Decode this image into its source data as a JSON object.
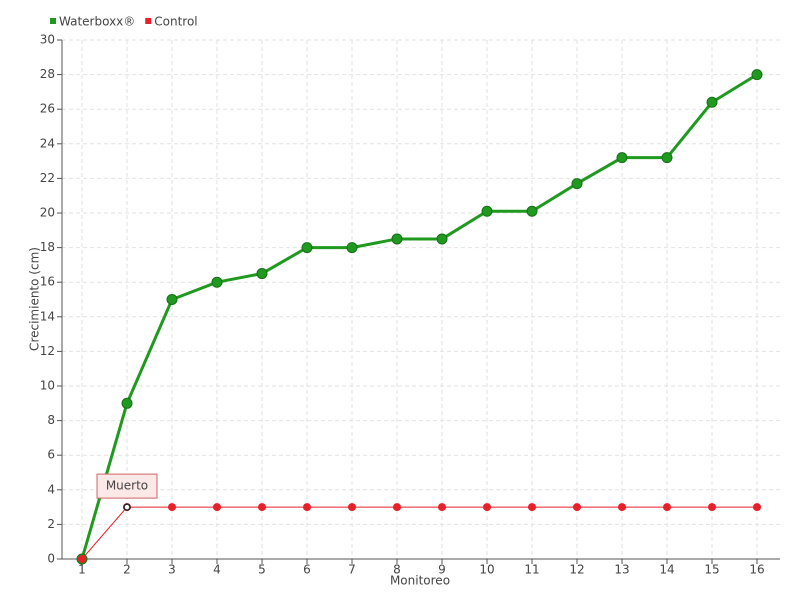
{
  "chart_data": {
    "type": "line",
    "xlabel": "Monitoreo",
    "ylabel": "Crecimiento (cm)",
    "categories": [
      "1",
      "2",
      "3",
      "4",
      "5",
      "6",
      "7",
      "8",
      "9",
      "10",
      "11",
      "12",
      "13",
      "14",
      "15",
      "16"
    ],
    "series": [
      {
        "name": "Waterboxx®",
        "color": "#1f9a1f",
        "values": [
          0,
          9,
          15,
          16,
          16.5,
          18,
          18,
          18.5,
          18.5,
          20.1,
          20.1,
          21.7,
          23.2,
          23.2,
          26.4,
          28
        ]
      },
      {
        "name": "Control",
        "color": "#e8202a",
        "values": [
          0,
          3,
          3,
          3,
          3,
          3,
          3,
          3,
          3,
          3,
          3,
          3,
          3,
          3,
          3,
          3
        ]
      }
    ],
    "annotation": {
      "text": "Muerto",
      "x": "2",
      "y": 3
    },
    "ylim": [
      0,
      30
    ],
    "yticks": [
      0,
      2,
      4,
      6,
      8,
      10,
      12,
      14,
      16,
      18,
      20,
      22,
      24,
      26,
      28,
      30
    ],
    "grid": true,
    "legend": "top-left"
  }
}
